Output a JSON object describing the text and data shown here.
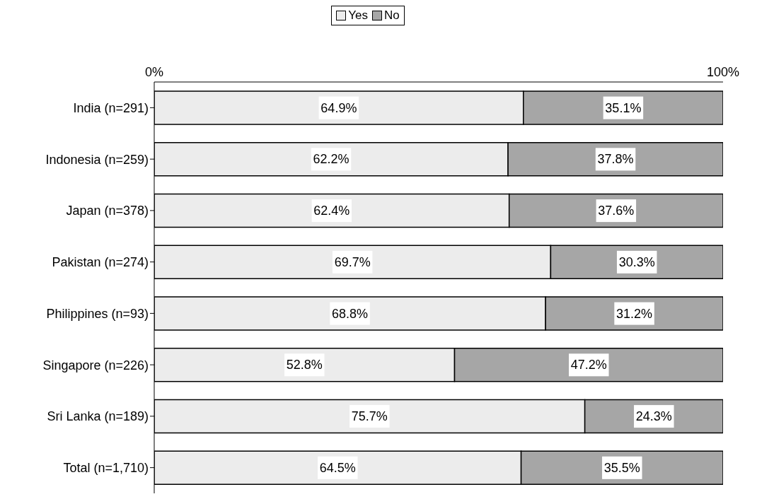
{
  "chart_data": {
    "type": "bar",
    "orientation": "horizontal",
    "stacked": true,
    "categories": [
      "India (n=291)",
      "Indonesia (n=259)",
      "Japan (n=378)",
      "Pakistan (n=274)",
      "Philippines (n=93)",
      "Singapore (n=226)",
      "Sri Lanka (n=189)",
      "Total (n=1,710)"
    ],
    "series": [
      {
        "name": "Yes",
        "color": "#ececec",
        "values": [
          64.9,
          62.2,
          62.4,
          69.7,
          68.8,
          52.8,
          75.7,
          64.5
        ],
        "value_labels": [
          "64.9%",
          "62.2%",
          "62.4%",
          "69.7%",
          "68.8%",
          "52.8%",
          "75.7%",
          "64.5%"
        ]
      },
      {
        "name": "No",
        "color": "#a6a6a6",
        "values": [
          35.1,
          37.8,
          37.6,
          30.3,
          31.2,
          47.2,
          24.3,
          35.5
        ],
        "value_labels": [
          "35.1%",
          "37.8%",
          "37.6%",
          "30.3%",
          "31.2%",
          "47.2%",
          "24.3%",
          "35.5%"
        ]
      }
    ],
    "xlim": [
      0,
      100
    ],
    "xticks": [
      {
        "value": 0,
        "label": "0%"
      },
      {
        "value": 100,
        "label": "100%"
      }
    ],
    "grid": false,
    "legend": "top"
  }
}
